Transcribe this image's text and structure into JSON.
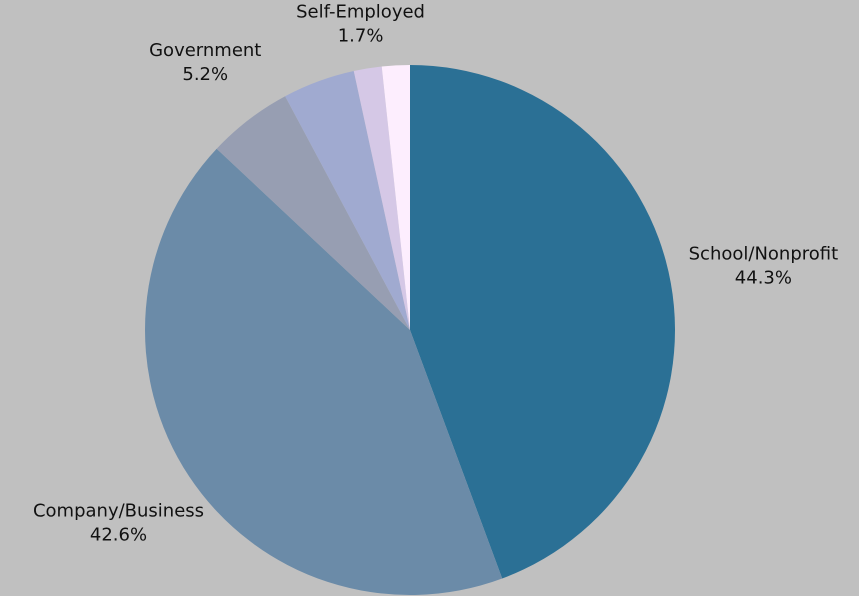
{
  "chart_data": {
    "type": "pie",
    "categories": [
      "School/Nonprofit",
      "Company/Business",
      "Government",
      null,
      "Self-Employed",
      null
    ],
    "values": [
      44.3,
      42.6,
      5.2,
      4.4,
      1.7,
      1.7
    ],
    "value_labels": [
      "44.3%",
      "42.6%",
      "5.2%",
      null,
      "1.7%",
      null
    ],
    "colors": [
      "#2b7095",
      "#6b8ba8",
      "#979eb2",
      "#a0aad0",
      "#d5c8e6",
      "#fdeefe"
    ]
  }
}
